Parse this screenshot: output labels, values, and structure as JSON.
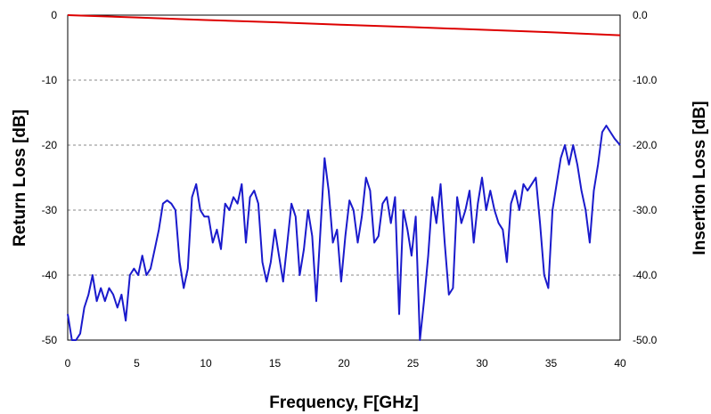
{
  "chart_data": {
    "type": "line",
    "title": "",
    "xlabel": "Frequency, F[GHz]",
    "ylabel_left": "Return Loss [dB]",
    "ylabel_right": "Insertion Loss [dB]",
    "xlim": [
      0,
      40
    ],
    "ylim_left": [
      -50,
      0
    ],
    "ylim_right": [
      -50,
      0
    ],
    "x_ticks": [
      "0",
      "5",
      "10",
      "15",
      "20",
      "25",
      "30",
      "35",
      "40"
    ],
    "y_ticks_left": [
      "0",
      "-10",
      "-20",
      "-30",
      "-40",
      "-50"
    ],
    "y_ticks_right": [
      "0.0",
      "-10.0",
      "-20.0",
      "-30.0",
      "-40.0",
      "-50.0"
    ],
    "grid": "horizontal dashed",
    "series": [
      {
        "axis": "right",
        "color": "#dd0000",
        "x": [
          0,
          5,
          10,
          15,
          20,
          25,
          30,
          35,
          40
        ],
        "y": [
          0,
          -0.35,
          -0.75,
          -1.1,
          -1.5,
          -1.85,
          -2.25,
          -2.65,
          -3.1
        ]
      },
      {
        "axis": "left",
        "color": "#1a1acc",
        "x": [
          0,
          0.3,
          0.6,
          0.9,
          1.2,
          1.5,
          1.8,
          2.1,
          2.4,
          2.7,
          3.0,
          3.3,
          3.6,
          3.9,
          4.2,
          4.5,
          4.8,
          5.1,
          5.4,
          5.7,
          6.0,
          6.3,
          6.6,
          6.9,
          7.2,
          7.5,
          7.8,
          8.1,
          8.4,
          8.7,
          9.0,
          9.3,
          9.6,
          9.9,
          10.2,
          10.5,
          10.8,
          11.1,
          11.4,
          11.7,
          12.0,
          12.3,
          12.6,
          12.9,
          13.2,
          13.5,
          13.8,
          14.1,
          14.4,
          14.7,
          15.0,
          15.3,
          15.6,
          15.9,
          16.2,
          16.5,
          16.8,
          17.1,
          17.4,
          17.7,
          18.0,
          18.3,
          18.6,
          18.9,
          19.2,
          19.5,
          19.8,
          20.1,
          20.4,
          20.7,
          21.0,
          21.3,
          21.6,
          21.9,
          22.2,
          22.5,
          22.8,
          23.1,
          23.4,
          23.7,
          24.0,
          24.3,
          24.6,
          24.9,
          25.2,
          25.5,
          25.8,
          26.1,
          26.4,
          26.7,
          27.0,
          27.3,
          27.6,
          27.9,
          28.2,
          28.5,
          28.8,
          29.1,
          29.4,
          29.7,
          30.0,
          30.3,
          30.6,
          30.9,
          31.2,
          31.5,
          31.8,
          32.1,
          32.4,
          32.7,
          33.0,
          33.3,
          33.6,
          33.9,
          34.2,
          34.5,
          34.8,
          35.1,
          35.4,
          35.7,
          36.0,
          36.3,
          36.6,
          36.9,
          37.2,
          37.5,
          37.8,
          38.1,
          38.4,
          38.7,
          39.0,
          39.3,
          39.6,
          40.0
        ],
        "y": [
          -46,
          -50,
          -50,
          -49,
          -45,
          -43,
          -40,
          -44,
          -42,
          -44,
          -42,
          -43,
          -45,
          -43,
          -47,
          -40,
          -39,
          -40,
          -37,
          -40,
          -39,
          -36,
          -33,
          -29,
          -28.5,
          -29,
          -30,
          -38,
          -42,
          -39,
          -28,
          -26,
          -30,
          -31,
          -31,
          -35,
          -33,
          -36,
          -29,
          -30,
          -28,
          -29,
          -26,
          -35,
          -28,
          -27,
          -29,
          -38,
          -41,
          -38,
          -33,
          -37,
          -41,
          -35,
          -29,
          -31,
          -40,
          -36,
          -30,
          -34,
          -44,
          -33,
          -22,
          -27,
          -35,
          -33,
          -41,
          -34,
          -28.5,
          -30,
          -35,
          -31,
          -25,
          -27,
          -35,
          -34,
          -29,
          -28,
          -32,
          -28,
          -46,
          -30,
          -33,
          -37,
          -31,
          -50,
          -44,
          -37,
          -28,
          -32,
          -26,
          -35,
          -43,
          -42,
          -28,
          -32,
          -30,
          -27,
          -35,
          -29,
          -25,
          -30,
          -27,
          -30,
          -32,
          -33,
          -38,
          -29,
          -27,
          -30,
          -26,
          -27,
          -26,
          -25,
          -32,
          -40,
          -42,
          -30,
          -26,
          -22,
          -20,
          -23,
          -20,
          -23,
          -27,
          -30,
          -35,
          -27,
          -23,
          -18,
          -17,
          -18,
          -19,
          -20
        ]
      }
    ]
  }
}
